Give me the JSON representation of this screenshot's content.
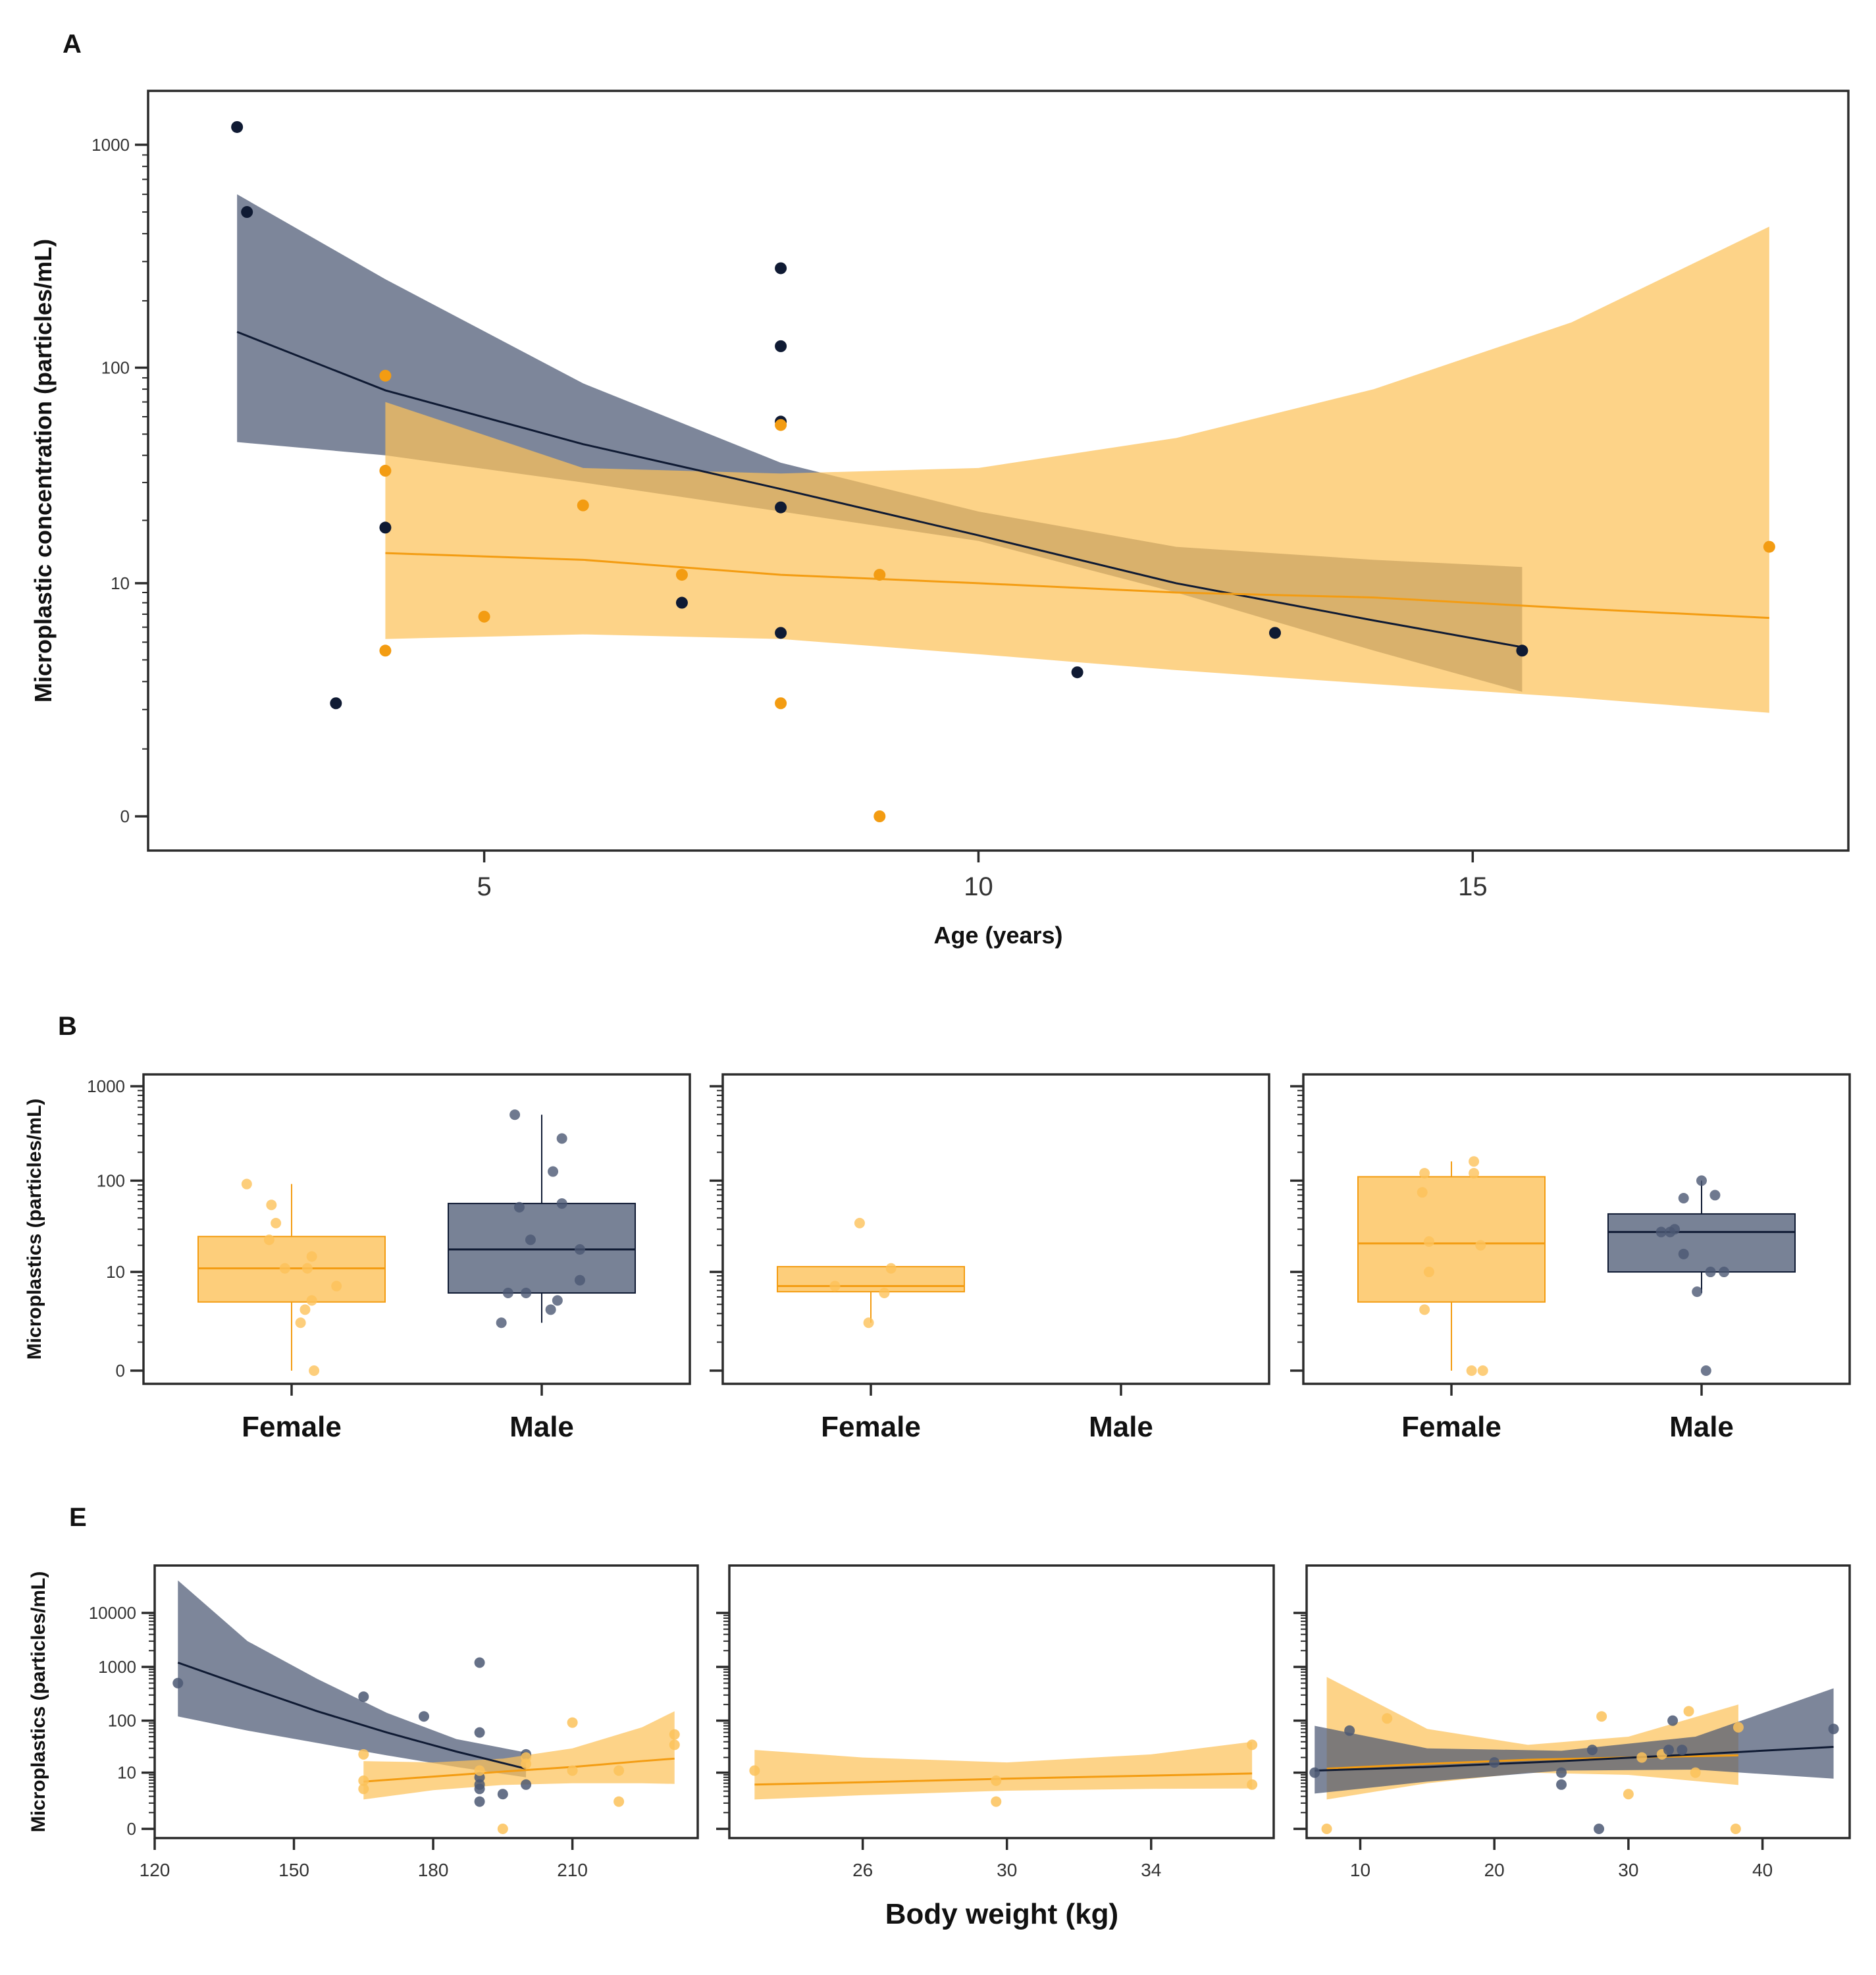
{
  "colors": {
    "orange": "#f39c12",
    "orange_band": "#fcc25a",
    "navy": "#0f1a33",
    "navy_band": "#4b5873",
    "frame": "#2b2b2b"
  },
  "chart_data": [
    {
      "panel": "A",
      "type": "scatter",
      "xlabel": "Age (years)",
      "ylabel": "Microplastic concentration (particles/mL)",
      "yscale": "log1p",
      "xlim": [
        1.6,
        18.8
      ],
      "xticks": [
        5,
        10,
        15
      ],
      "ytick_values": [
        0,
        10,
        100,
        1000
      ],
      "ytick_labels": [
        "0",
        "10",
        "100",
        "1000"
      ],
      "series": [
        {
          "color": "navy",
          "points": [
            [
              2.5,
              1200
            ],
            [
              2.6,
              500
            ],
            [
              3.5,
              2.2
            ],
            [
              4,
              18.5
            ],
            [
              7,
              8
            ],
            [
              8,
              280
            ],
            [
              8,
              125
            ],
            [
              8,
              57
            ],
            [
              8,
              23
            ],
            [
              8,
              5.6
            ],
            [
              11,
              3.4
            ],
            [
              13,
              5.6
            ],
            [
              15.5,
              4.5
            ]
          ],
          "fit_x": [
            2.5,
            4,
            6,
            8,
            10,
            12,
            14,
            15.5
          ],
          "fit": [
            145,
            79,
            45,
            28,
            17,
            10,
            6.5,
            4.7
          ],
          "fit_lower": [
            46,
            40,
            30,
            22,
            16,
            9,
            4.5,
            2.6
          ],
          "fit_upper": [
            600,
            250,
            85,
            37,
            22,
            15,
            13,
            12
          ]
        },
        {
          "color": "orange",
          "points": [
            [
              4,
              92
            ],
            [
              4,
              34
            ],
            [
              4,
              4.5
            ],
            [
              5,
              6.8
            ],
            [
              6,
              23.5
            ],
            [
              7,
              11
            ],
            [
              8,
              55
            ],
            [
              8,
              2.2
            ],
            [
              9,
              11
            ],
            [
              9,
              0
            ],
            [
              18,
              15
            ]
          ],
          "fit_x": [
            4,
            6,
            8,
            10,
            12,
            14,
            16,
            18
          ],
          "fit": [
            14,
            13,
            11,
            10,
            9,
            8.5,
            7.5,
            6.7
          ],
          "fit_lower": [
            5.2,
            5.5,
            5.2,
            4.3,
            3.5,
            2.9,
            2.4,
            1.9
          ],
          "fit_upper": [
            70,
            35,
            33,
            35,
            48,
            80,
            160,
            430
          ]
        }
      ]
    },
    {
      "panel": "B",
      "type": "box",
      "ylabel": "Microplastics (particles/mL)",
      "yscale": "log1p",
      "ytick_values": [
        0,
        10,
        100,
        1000
      ],
      "ytick_labels": [
        "0",
        "10",
        "100",
        "1000"
      ],
      "categories": [
        "Female",
        "Male"
      ],
      "facets": [
        {
          "boxes": [
            {
              "category": "Female",
              "color": "orange",
              "q1": 4.3,
              "median": 11,
              "q3": 25,
              "whisker_low": 0,
              "whisker_high": 92,
              "points": [
                [
                  -0.2,
                  92
                ],
                [
                  -0.09,
                  55
                ],
                [
                  -0.07,
                  35
                ],
                [
                  -0.1,
                  23
                ],
                [
                  -0.03,
                  11
                ],
                [
                  0.07,
                  11
                ],
                [
                  0.09,
                  15
                ],
                [
                  0.2,
                  6.8
                ],
                [
                  0.09,
                  4.5
                ],
                [
                  0.06,
                  3.4
                ],
                [
                  0.04,
                  2.2
                ],
                [
                  0.1,
                  0
                ]
              ]
            },
            {
              "category": "Male",
              "color": "navy",
              "q1": 5.6,
              "median": 18,
              "q3": 57,
              "whisker_low": 2.2,
              "whisker_high": 500,
              "points": [
                [
                  -0.12,
                  500
                ],
                [
                  0.09,
                  280
                ],
                [
                  0.05,
                  125
                ],
                [
                  -0.1,
                  52
                ],
                [
                  0.09,
                  57
                ],
                [
                  -0.05,
                  23
                ],
                [
                  0.17,
                  18
                ],
                [
                  0.17,
                  8
                ],
                [
                  -0.07,
                  5.6
                ],
                [
                  -0.15,
                  5.6
                ],
                [
                  0.07,
                  4.5
                ],
                [
                  0.04,
                  3.4
                ],
                [
                  -0.18,
                  2.2
                ]
              ]
            }
          ]
        },
        {
          "boxes": [
            {
              "category": "Female",
              "color": "orange",
              "q1": 5.8,
              "median": 6.8,
              "q3": 11.5,
              "whisker_low": 2.2,
              "whisker_high": 11.5,
              "points": [
                [
                  -0.05,
                  35
                ],
                [
                  0.09,
                  11
                ],
                [
                  -0.16,
                  6.8
                ],
                [
                  0.06,
                  5.6
                ],
                [
                  -0.01,
                  2.2
                ]
              ]
            }
          ]
        },
        {
          "boxes": [
            {
              "category": "Female",
              "color": "orange",
              "q1": 4.3,
              "median": 21,
              "q3": 110,
              "whisker_low": 0,
              "whisker_high": 160,
              "points": [
                [
                  0.1,
                  160
                ],
                [
                  -0.12,
                  120
                ],
                [
                  0.1,
                  120
                ],
                [
                  -0.13,
                  75
                ],
                [
                  -0.1,
                  22
                ],
                [
                  0.13,
                  20
                ],
                [
                  -0.1,
                  10
                ],
                [
                  -0.12,
                  3.4
                ],
                [
                  0.09,
                  0
                ],
                [
                  0.14,
                  0
                ]
              ]
            },
            {
              "category": "Male",
              "color": "navy",
              "q1": 10,
              "median": 28,
              "q3": 44,
              "whisker_low": 5.6,
              "whisker_high": 100,
              "points": [
                [
                  0,
                  100
                ],
                [
                  0.06,
                  70
                ],
                [
                  -0.08,
                  65
                ],
                [
                  -0.18,
                  28
                ],
                [
                  -0.14,
                  28
                ],
                [
                  -0.12,
                  30
                ],
                [
                  -0.08,
                  16
                ],
                [
                  0.04,
                  10
                ],
                [
                  0.1,
                  10
                ],
                [
                  -0.02,
                  5.8
                ],
                [
                  0.02,
                  0
                ]
              ]
            }
          ]
        }
      ]
    },
    {
      "panel": "E",
      "type": "scatter",
      "xlabel": "Body weight (kg)",
      "ylabel": "Microplastics (particles/mL)",
      "yscale": "log1p",
      "ytick_values": [
        0,
        10,
        100,
        1000,
        10000
      ],
      "ytick_labels": [
        "0",
        "10",
        "100",
        "1000",
        "10000"
      ],
      "facets": [
        {
          "xlim": [
            120,
            237
          ],
          "xticks": [
            120,
            150,
            180,
            210
          ],
          "series": [
            {
              "color": "navy",
              "points": [
                [
                  125,
                  500
                ],
                [
                  165,
                  280
                ],
                [
                  178,
                  120
                ],
                [
                  190,
                  1200
                ],
                [
                  190,
                  60
                ],
                [
                  190,
                  8
                ],
                [
                  190,
                  5.6
                ],
                [
                  190,
                  4.5
                ],
                [
                  190,
                  2.2
                ],
                [
                  195,
                  3.4
                ],
                [
                  200,
                  5.6
                ],
                [
                  200,
                  23
                ]
              ],
              "fit_x": [
                125,
                140,
                155,
                170,
                185,
                200
              ],
              "fit": [
                1200,
                420,
                150,
                60,
                26,
                12
              ],
              "fit_lower": [
                120,
                65,
                38,
                22,
                13,
                8
              ],
              "fit_upper": [
                40000,
                3000,
                600,
                140,
                45,
                25
              ]
            },
            {
              "color": "orange",
              "points": [
                [
                  165,
                  23
                ],
                [
                  165,
                  6.8
                ],
                [
                  165,
                  4.5
                ],
                [
                  190,
                  11
                ],
                [
                  195,
                  0
                ],
                [
                  200,
                  15
                ],
                [
                  200,
                  20
                ],
                [
                  210,
                  92
                ],
                [
                  210,
                  11
                ],
                [
                  220,
                  11
                ],
                [
                  220,
                  2.2
                ],
                [
                  232,
                  55
                ],
                [
                  232,
                  35
                ]
              ],
              "fit_x": [
                165,
                180,
                195,
                210,
                225,
                232
              ],
              "fit": [
                6.5,
                8.3,
                10.5,
                13,
                17,
                19
              ],
              "fit_lower": [
                2.5,
                4.2,
                5.5,
                6,
                6,
                5.8
              ],
              "fit_upper": [
                17,
                16,
                19,
                30,
                75,
                150
              ]
            }
          ]
        },
        {
          "xlim": [
            22.3,
            37.4
          ],
          "xticks": [
            26,
            30,
            34
          ],
          "series": [
            {
              "color": "orange",
              "points": [
                [
                  23,
                  11
                ],
                [
                  29.7,
                  6.8
                ],
                [
                  29.7,
                  2.2
                ],
                [
                  36.8,
                  35
                ],
                [
                  36.8,
                  5.6
                ]
              ],
              "fit_x": [
                23,
                26,
                30,
                34,
                36.8
              ],
              "fit": [
                5.6,
                6.3,
                7.5,
                8.7,
                9.6
              ],
              "fit_lower": [
                2.5,
                3.2,
                4.1,
                4.5,
                4.6
              ],
              "fit_upper": [
                28,
                20,
                16,
                23,
                40
              ]
            }
          ]
        },
        {
          "xlim": [
            6,
            46.5
          ],
          "xticks": [
            10,
            20,
            30,
            40
          ],
          "series": [
            {
              "color": "orange",
              "points": [
                [
                  7.5,
                  0
                ],
                [
                  12,
                  110
                ],
                [
                  28,
                  120
                ],
                [
                  30,
                  3.4
                ],
                [
                  31,
                  20
                ],
                [
                  32.5,
                  23
                ],
                [
                  34.5,
                  150
                ],
                [
                  35,
                  10
                ],
                [
                  38,
                  0
                ],
                [
                  38.2,
                  75
                ]
              ],
              "fit_x": [
                7.5,
                15,
                22.5,
                30,
                38.2
              ],
              "fit": [
                12,
                15,
                18,
                20,
                22
              ],
              "fit_lower": [
                2.5,
                6,
                10,
                9,
                5.5
              ],
              "fit_upper": [
                650,
                70,
                35,
                50,
                200
              ]
            },
            {
              "color": "navy",
              "points": [
                [
                  6.6,
                  10
                ],
                [
                  9.2,
                  65
                ],
                [
                  20,
                  16
                ],
                [
                  25,
                  10
                ],
                [
                  25,
                  5.6
                ],
                [
                  27.3,
                  28
                ],
                [
                  27.8,
                  0
                ],
                [
                  33,
                  28
                ],
                [
                  33.3,
                  100
                ],
                [
                  34,
                  28
                ],
                [
                  45.3,
                  70
                ]
              ],
              "fit_x": [
                6.6,
                15,
                25,
                35,
                45.3
              ],
              "fit": [
                11,
                13,
                17,
                23,
                32
              ],
              "fit_lower": [
                3.5,
                6.5,
                11,
                11.5,
                7.5
              ],
              "fit_upper": [
                80,
                30,
                27,
                50,
                400
              ]
            }
          ]
        }
      ]
    }
  ],
  "labels": {
    "panel_a": "A",
    "panel_b": "B",
    "panel_e": "E"
  }
}
